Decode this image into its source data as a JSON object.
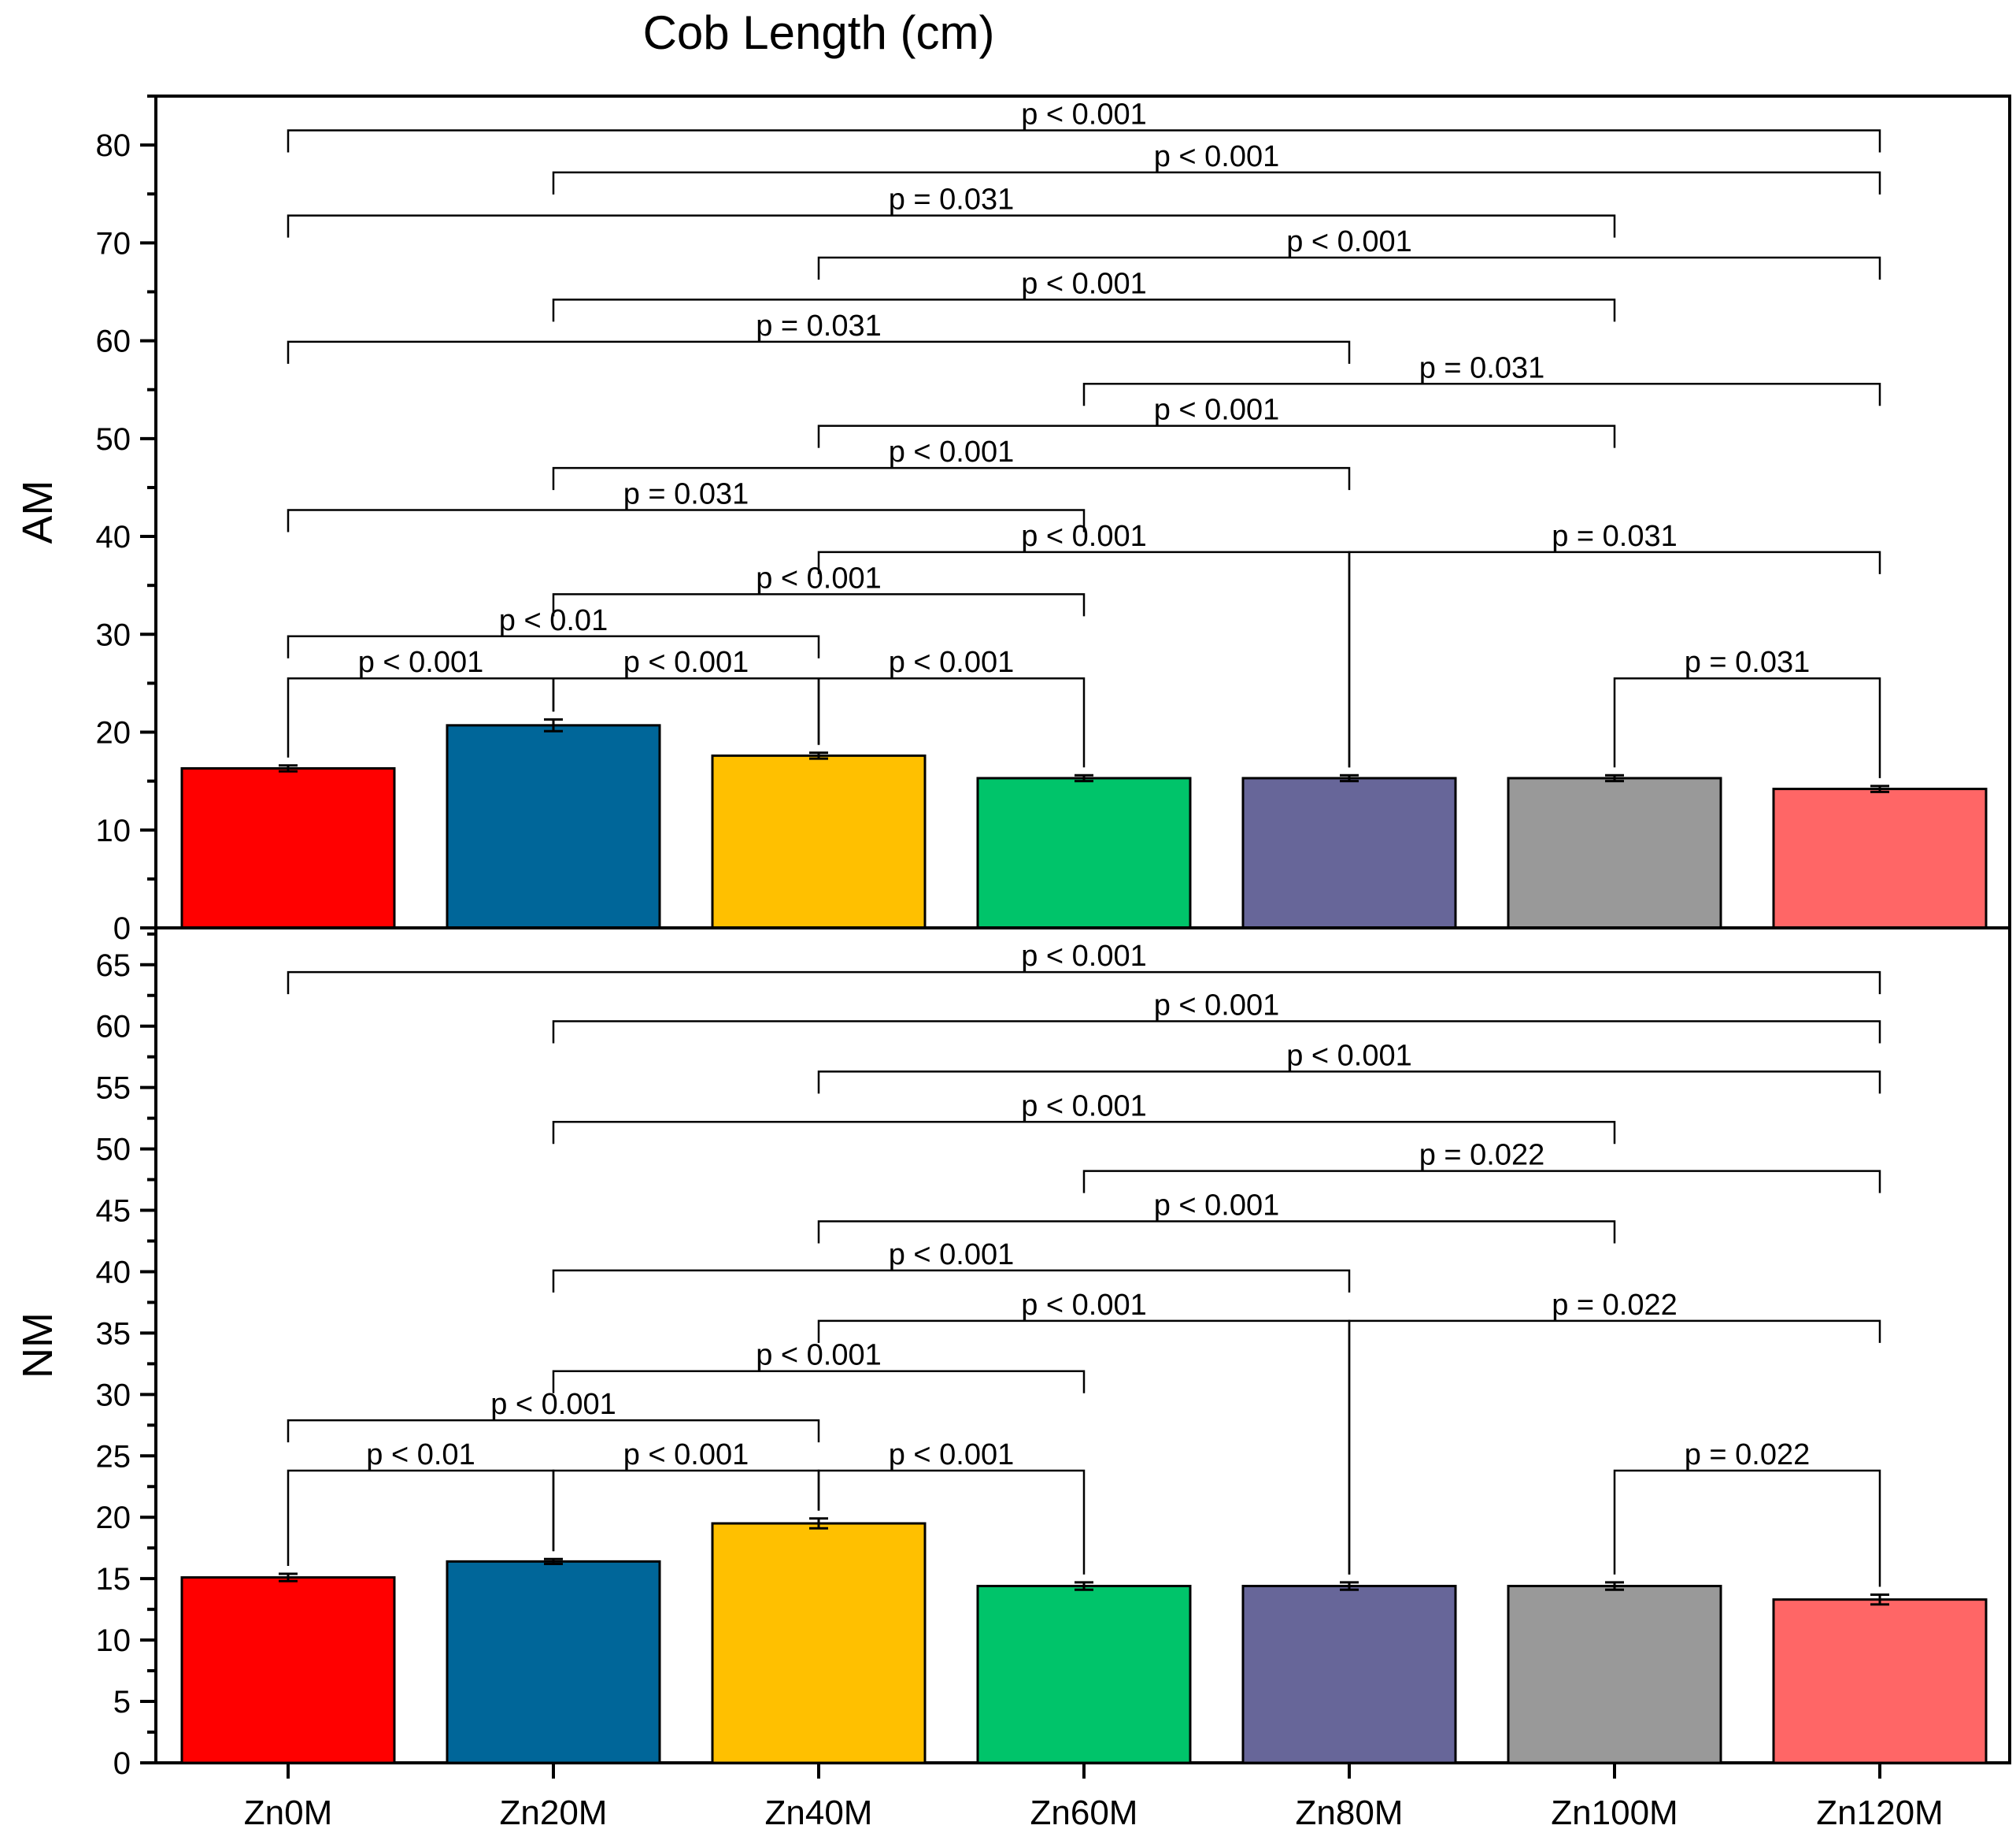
{
  "title": "Cob Length (cm)",
  "categories": [
    "Zn0M",
    "Zn20M",
    "Zn40M",
    "Zn60M",
    "Zn80M",
    "Zn100M",
    "Zn120M"
  ],
  "colors": [
    "#ff0000",
    "#006699",
    "#ffc000",
    "#00c46a",
    "#676699",
    "#999999",
    "#ff6666"
  ],
  "chart_data": [
    {
      "type": "bar",
      "panel": "AM",
      "ylabel": "AM",
      "title": "Cob Length (cm)",
      "ylim": [
        0,
        85
      ],
      "yticks": [
        0,
        10,
        20,
        30,
        40,
        50,
        60,
        70,
        80
      ],
      "categories": [
        "Zn0M",
        "Zn20M",
        "Zn40M",
        "Zn60M",
        "Zn80M",
        "Zn100M",
        "Zn120M"
      ],
      "values": [
        16.3,
        20.7,
        17.6,
        15.3,
        15.3,
        15.3,
        14.2
      ],
      "errors": [
        0.3,
        0.6,
        0.3,
        0.3,
        0.3,
        0.3,
        0.3
      ],
      "comparisons": [
        {
          "a": 0,
          "b": 6,
          "y": 81.5,
          "label": "p < 0.001"
        },
        {
          "a": 1,
          "b": 6,
          "y": 77.2,
          "label": "p < 0.001"
        },
        {
          "a": 0,
          "b": 5,
          "y": 72.8,
          "label": "p = 0.031"
        },
        {
          "a": 2,
          "b": 6,
          "y": 68.5,
          "label": "p < 0.001"
        },
        {
          "a": 1,
          "b": 5,
          "y": 64.2,
          "label": "p < 0.001"
        },
        {
          "a": 0,
          "b": 4,
          "y": 59.9,
          "label": "p = 0.031"
        },
        {
          "a": 3,
          "b": 6,
          "y": 55.6,
          "label": "p = 0.031"
        },
        {
          "a": 2,
          "b": 5,
          "y": 51.3,
          "label": "p < 0.001"
        },
        {
          "a": 1,
          "b": 4,
          "y": 47.0,
          "label": "p < 0.001"
        },
        {
          "a": 0,
          "b": 3,
          "y": 42.7,
          "label": "p = 0.031"
        },
        {
          "a": 2,
          "b": 4,
          "y": 38.4,
          "label": "p < 0.001"
        },
        {
          "a": 4,
          "b": 6,
          "y": 38.4,
          "label": "p = 0.031"
        },
        {
          "a": 1,
          "b": 3,
          "y": 34.1,
          "label": "p < 0.001"
        },
        {
          "a": 0,
          "b": 2,
          "y": 29.8,
          "label": "p < 0.01"
        },
        {
          "a": 0,
          "b": 1,
          "y": 25.5,
          "label": "p < 0.001"
        },
        {
          "a": 1,
          "b": 2,
          "y": 25.5,
          "label": "p < 0.001"
        },
        {
          "a": 2,
          "b": 3,
          "y": 25.5,
          "label": "p < 0.001"
        },
        {
          "a": 5,
          "b": 6,
          "y": 25.5,
          "label": "p = 0.031"
        }
      ]
    },
    {
      "type": "bar",
      "panel": "NM",
      "ylabel": "NM",
      "title": "Cob Length (cm)",
      "ylim": [
        0,
        68
      ],
      "yticks": [
        0,
        5,
        10,
        15,
        20,
        25,
        30,
        35,
        40,
        45,
        50,
        55,
        60,
        65
      ],
      "categories": [
        "Zn0M",
        "Zn20M",
        "Zn40M",
        "Zn60M",
        "Zn80M",
        "Zn100M",
        "Zn120M"
      ],
      "values": [
        15.1,
        16.4,
        19.5,
        14.4,
        14.4,
        14.4,
        13.3
      ],
      "errors": [
        0.3,
        0.2,
        0.4,
        0.3,
        0.3,
        0.3,
        0.4
      ],
      "comparisons": [
        {
          "a": 0,
          "b": 6,
          "y": 64.4,
          "label": "p < 0.001"
        },
        {
          "a": 1,
          "b": 6,
          "y": 60.4,
          "label": "p < 0.001"
        },
        {
          "a": 2,
          "b": 6,
          "y": 56.3,
          "label": "p < 0.001"
        },
        {
          "a": 1,
          "b": 5,
          "y": 52.2,
          "label": "p < 0.001"
        },
        {
          "a": 3,
          "b": 6,
          "y": 48.2,
          "label": "p = 0.022"
        },
        {
          "a": 2,
          "b": 5,
          "y": 44.1,
          "label": "p < 0.001"
        },
        {
          "a": 1,
          "b": 4,
          "y": 40.1,
          "label": "p < 0.001"
        },
        {
          "a": 2,
          "b": 4,
          "y": 36.0,
          "label": "p < 0.001"
        },
        {
          "a": 4,
          "b": 6,
          "y": 36.0,
          "label": "p = 0.022"
        },
        {
          "a": 1,
          "b": 3,
          "y": 31.9,
          "label": "p < 0.001"
        },
        {
          "a": 0,
          "b": 2,
          "y": 27.9,
          "label": "p < 0.001"
        },
        {
          "a": 0,
          "b": 1,
          "y": 23.8,
          "label": "p < 0.01"
        },
        {
          "a": 1,
          "b": 2,
          "y": 23.8,
          "label": "p < 0.001"
        },
        {
          "a": 2,
          "b": 3,
          "y": 23.8,
          "label": "p < 0.001"
        },
        {
          "a": 5,
          "b": 6,
          "y": 23.8,
          "label": "p = 0.022"
        }
      ]
    }
  ]
}
